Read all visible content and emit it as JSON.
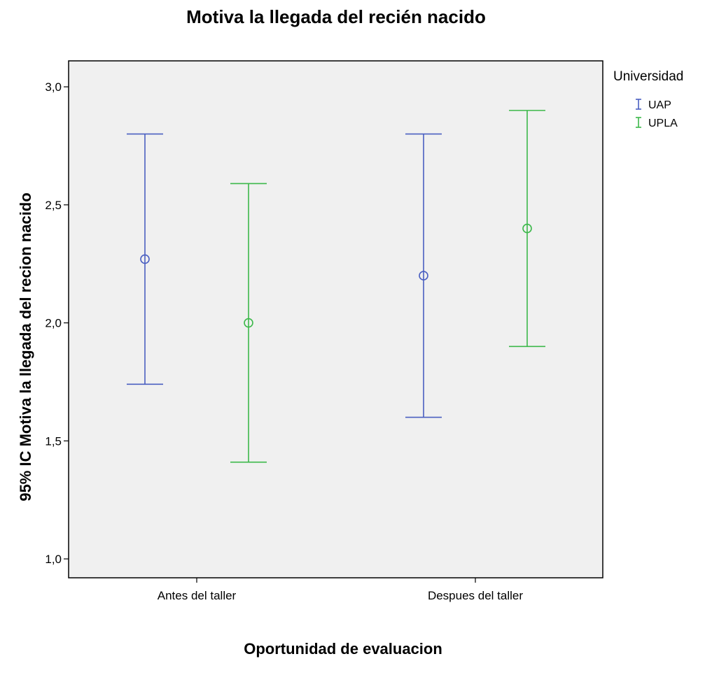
{
  "chart_data": {
    "type": "errorbar",
    "title": "Motiva la llegada del recién nacido",
    "xlabel": "Oportunidad de evaluacion",
    "ylabel": "95% IC Motiva la llegada del recion nacido",
    "categories": [
      "Antes del taller",
      "Despues del taller"
    ],
    "ylim": [
      0.92,
      3.11
    ],
    "yticks": [
      1.0,
      1.5,
      2.0,
      2.5,
      3.0
    ],
    "ytick_labels": [
      "1,0",
      "1,5",
      "2,0",
      "2,5",
      "3,0"
    ],
    "legend": {
      "title": "Universidad",
      "position": "top-right, outside plot"
    },
    "plot_background": "#f0f0f0",
    "series": [
      {
        "name": "UAP",
        "color": "#4a5fc1",
        "mean": [
          2.27,
          2.2
        ],
        "lower": [
          1.74,
          1.6
        ],
        "upper": [
          2.8,
          2.8
        ]
      },
      {
        "name": "UPLA",
        "color": "#3cb84a",
        "mean": [
          2.0,
          2.4
        ],
        "lower": [
          1.41,
          1.9
        ],
        "upper": [
          2.59,
          2.9
        ]
      }
    ]
  }
}
